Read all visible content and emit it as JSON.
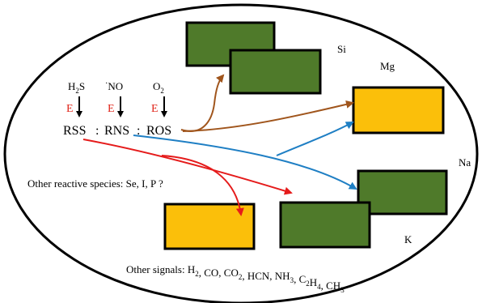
{
  "elements": {
    "sources": [
      {
        "base": "H",
        "sub": "2",
        "tail": "S"
      },
      {
        "prefix": "·",
        "base": "NO"
      },
      {
        "base": "O",
        "sub": "2"
      }
    ],
    "enzyme_label": "E",
    "enzyme_color": "#e0261b",
    "species": [
      "RSS",
      "RNS",
      "ROS"
    ],
    "separator": ":"
  },
  "labels": {
    "si": "Si",
    "mg": "Mg",
    "na": "Na",
    "k": "K"
  },
  "other_reactive": "Other reactive species: Se, I, P ?",
  "other_signals": {
    "prefix": "Other signals: ",
    "items": [
      [
        {
          "t": "H"
        },
        {
          "s": "2"
        }
      ],
      [
        {
          "t": "CO"
        }
      ],
      [
        {
          "t": "CO"
        },
        {
          "s": "2"
        }
      ],
      [
        {
          "t": "HCN"
        }
      ],
      [
        {
          "t": "NH"
        },
        {
          "s": "3"
        }
      ],
      [
        {
          "t": "C"
        },
        {
          "s": "2"
        },
        {
          "t": "H"
        },
        {
          "s": "4"
        }
      ],
      [
        {
          "t": "CH"
        },
        {
          "s": "3"
        }
      ]
    ]
  },
  "colors": {
    "green_box": "#4f7a2a",
    "yellow_box": "#fbbf0a",
    "brown_arrow": "#a0551c",
    "blue_arrow": "#1f7fc4",
    "red_arrow": "#e51b1b"
  }
}
